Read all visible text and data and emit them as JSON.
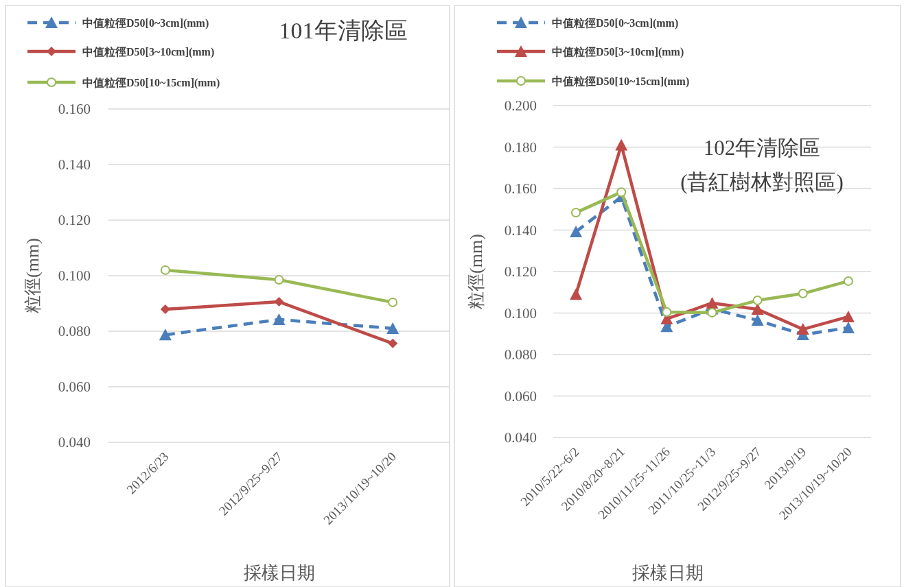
{
  "chart_data": [
    {
      "type": "line",
      "title": "101年清除區",
      "xlabel": "採樣日期",
      "ylabel": "粒徑(mm)",
      "categories": [
        "2012/6/23",
        "2012/9/25~9/27",
        "2013/10/19~10/20"
      ],
      "series": [
        {
          "name": "中值粒徑D50[0~3cm](mm)",
          "color": "#4a7ebb",
          "marker": "triangle",
          "line_style": "dashed",
          "values": [
            0.0787,
            0.0842,
            0.081
          ]
        },
        {
          "name": "中值粒徑D50[3~10cm](mm)",
          "color": "#be4b48",
          "marker": "diamond",
          "line_style": "solid",
          "values": [
            0.0879,
            0.0906,
            0.0756
          ]
        },
        {
          "name": "中值粒徑D50[10~15cm](mm)",
          "color": "#98b954",
          "marker": "circle",
          "line_style": "solid",
          "values": [
            0.102,
            0.0985,
            0.0904
          ]
        }
      ],
      "ylim": [
        0.04,
        0.16
      ],
      "yticks": [
        {
          "value": 0.04,
          "label": "0.040"
        },
        {
          "value": 0.06,
          "label": "0.060"
        },
        {
          "value": 0.08,
          "label": "0.080"
        },
        {
          "value": 0.1,
          "label": "0.100"
        },
        {
          "value": 0.12,
          "label": "0.120"
        },
        {
          "value": 0.14,
          "label": "0.140"
        },
        {
          "value": 0.16,
          "label": "0.160"
        }
      ],
      "grid": "y",
      "legend": "top"
    },
    {
      "type": "line",
      "title": "102年清除區\n(昔紅樹林對照區)",
      "xlabel": "採樣日期",
      "ylabel": "粒徑(mm)",
      "categories": [
        "2010/5/22~6/2",
        "2010/8/20~8/21",
        "2010/11/25~11/26",
        "2011/10/25~11/3",
        "2012/9/25~9/27",
        "2013/9/19",
        "2013/10/19~10/20"
      ],
      "series": [
        {
          "name": "中值粒徑D50[0~3cm](mm)",
          "color": "#4a7ebb",
          "marker": "triangle",
          "line_style": "dashed",
          "values": [
            0.1392,
            0.156,
            0.0935,
            0.102,
            0.0965,
            0.0896,
            0.0929
          ]
        },
        {
          "name": "中值粒徑D50[3~10cm](mm)",
          "color": "#be4b48",
          "marker": "triangle",
          "line_style": "solid",
          "values": [
            0.109,
            0.181,
            0.0972,
            0.1048,
            0.1018,
            0.0922,
            0.0982
          ]
        },
        {
          "name": "中值粒徑D50[10~15cm](mm)",
          "color": "#98b954",
          "marker": "circle",
          "line_style": "solid",
          "values": [
            0.1484,
            0.1583,
            0.1005,
            0.1002,
            0.1061,
            0.1094,
            0.1154
          ]
        }
      ],
      "ylim": [
        0.04,
        0.2
      ],
      "yticks": [
        {
          "value": 0.04,
          "label": "0.040"
        },
        {
          "value": 0.06,
          "label": "0.060"
        },
        {
          "value": 0.08,
          "label": "0.080"
        },
        {
          "value": 0.1,
          "label": "0.100"
        },
        {
          "value": 0.12,
          "label": "0.120"
        },
        {
          "value": 0.14,
          "label": "0.140"
        },
        {
          "value": 0.16,
          "label": "0.160"
        },
        {
          "value": 0.18,
          "label": "0.180"
        },
        {
          "value": 0.2,
          "label": "0.200"
        }
      ],
      "grid": "y",
      "legend": "top"
    }
  ]
}
